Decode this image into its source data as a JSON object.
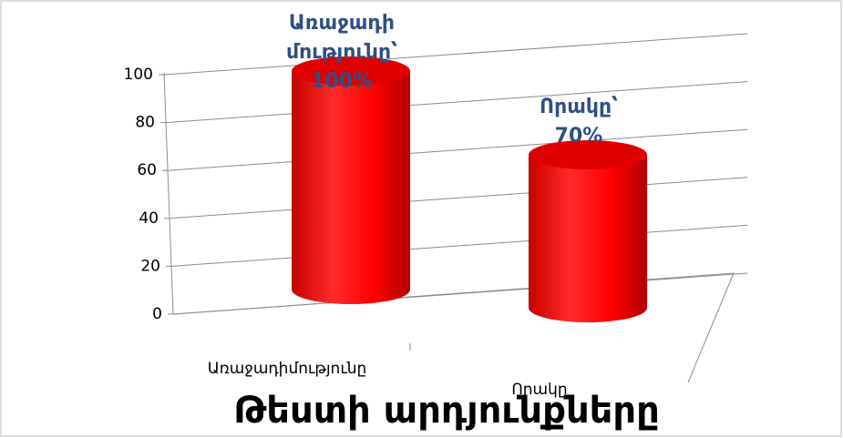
{
  "chart_data": {
    "type": "bar",
    "title": "Թեստի արդյունքները",
    "categories": [
      "Առաջադիմությունը",
      "Որակը"
    ],
    "values": [
      100,
      70
    ],
    "value_labels": [
      "Առաջադի\nմությունը՝\n100%",
      "Որակը՝\n70%"
    ],
    "color": "#ff0000",
    "ylim": [
      0,
      100
    ],
    "yticks": [
      0,
      20,
      40,
      60,
      80,
      100
    ],
    "grid": true
  }
}
